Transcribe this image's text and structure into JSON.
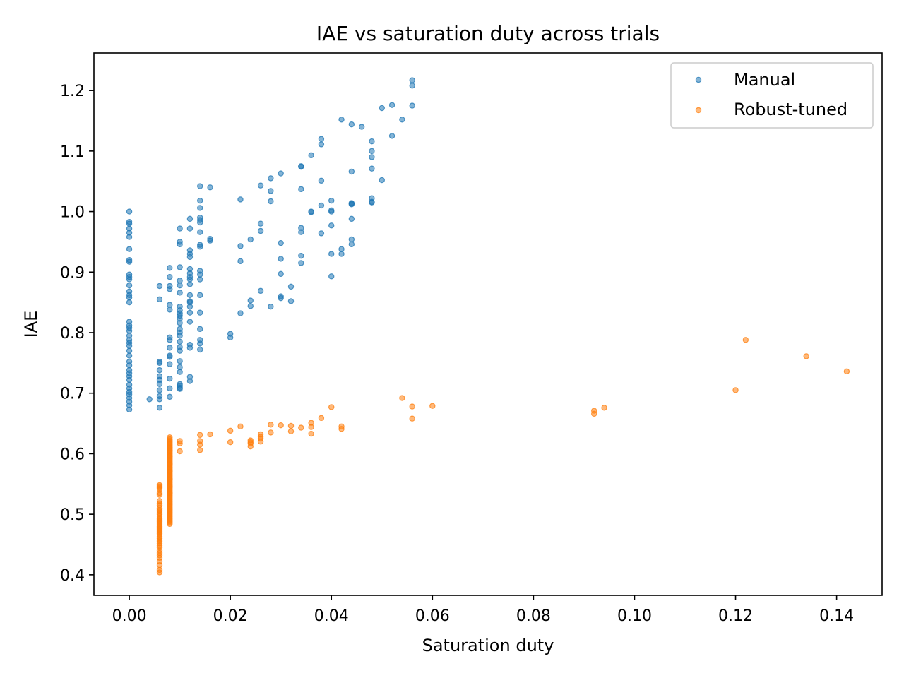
{
  "chart_data": {
    "type": "scatter",
    "title": "IAE vs saturation duty across trials",
    "xlabel": "Saturation duty",
    "ylabel": "IAE",
    "xlim": [
      -0.007,
      0.149
    ],
    "ylim": [
      0.366,
      1.262
    ],
    "xticks": [
      0.0,
      0.02,
      0.04,
      0.06,
      0.08,
      0.1,
      0.12,
      0.14
    ],
    "xtick_labels": [
      "0.00",
      "0.02",
      "0.04",
      "0.06",
      "0.08",
      "0.10",
      "0.12",
      "0.14"
    ],
    "yticks": [
      0.4,
      0.5,
      0.6,
      0.7,
      0.8,
      0.9,
      1.0,
      1.1,
      1.2
    ],
    "ytick_labels": [
      "0.4",
      "0.5",
      "0.6",
      "0.7",
      "0.8",
      "0.9",
      "1.0",
      "1.1",
      "1.2"
    ],
    "grid": false,
    "legend_position": "top-right",
    "series": [
      {
        "name": "Manual",
        "color": "#1f77b4",
        "x": [
          0,
          0,
          0,
          0,
          0,
          0,
          0,
          0,
          0,
          0,
          0,
          0,
          0,
          0,
          0,
          0,
          0,
          0,
          0,
          0,
          0,
          0,
          0,
          0,
          0,
          0,
          0,
          0,
          0,
          0,
          0,
          0,
          0,
          0,
          0,
          0,
          0,
          0,
          0,
          0,
          0,
          0.004,
          0.006,
          0.006,
          0.006,
          0.006,
          0.006,
          0.006,
          0.006,
          0.006,
          0.006,
          0.006,
          0.006,
          0.006,
          0.008,
          0.008,
          0.008,
          0.008,
          0.008,
          0.008,
          0.008,
          0.008,
          0.008,
          0.008,
          0.008,
          0.008,
          0.008,
          0.008,
          0.008,
          0.01,
          0.01,
          0.01,
          0.01,
          0.01,
          0.01,
          0.01,
          0.01,
          0.01,
          0.01,
          0.01,
          0.01,
          0.01,
          0.01,
          0.01,
          0.01,
          0.01,
          0.01,
          0.01,
          0.01,
          0.01,
          0.01,
          0.01,
          0.01,
          0.01,
          0.01,
          0.012,
          0.012,
          0.012,
          0.012,
          0.012,
          0.012,
          0.012,
          0.012,
          0.012,
          0.012,
          0.012,
          0.012,
          0.012,
          0.012,
          0.012,
          0.012,
          0.012,
          0.012,
          0.012,
          0.012,
          0.014,
          0.014,
          0.014,
          0.014,
          0.014,
          0.014,
          0.014,
          0.014,
          0.014,
          0.014,
          0.014,
          0.014,
          0.014,
          0.014,
          0.014,
          0.014,
          0.014,
          0.014,
          0.016,
          0.016,
          0.016,
          0.02,
          0.02,
          0.022,
          0.022,
          0.022,
          0.022,
          0.024,
          0.024,
          0.024,
          0.026,
          0.026,
          0.026,
          0.026,
          0.028,
          0.028,
          0.028,
          0.028,
          0.03,
          0.03,
          0.03,
          0.03,
          0.03,
          0.03,
          0.032,
          0.032,
          0.034,
          0.034,
          0.034,
          0.034,
          0.034,
          0.034,
          0.034,
          0.036,
          0.036,
          0.036,
          0.038,
          0.038,
          0.038,
          0.038,
          0.038,
          0.04,
          0.04,
          0.04,
          0.04,
          0.04,
          0.04,
          0.042,
          0.042,
          0.042,
          0.044,
          0.044,
          0.044,
          0.044,
          0.044,
          0.044,
          0.044,
          0.044,
          0.046,
          0.048,
          0.048,
          0.048,
          0.048,
          0.048,
          0.048,
          0.048,
          0.05,
          0.05,
          0.052,
          0.052,
          0.054,
          0.056,
          0.056,
          0.056
        ],
        "y": [
          1.0,
          0.983,
          0.98,
          0.972,
          0.965,
          0.958,
          0.938,
          0.92,
          0.917,
          0.896,
          0.892,
          0.888,
          0.878,
          0.868,
          0.862,
          0.858,
          0.85,
          0.818,
          0.812,
          0.808,
          0.803,
          0.795,
          0.788,
          0.783,
          0.778,
          0.77,
          0.762,
          0.752,
          0.746,
          0.738,
          0.733,
          0.728,
          0.722,
          0.714,
          0.708,
          0.702,
          0.698,
          0.692,
          0.686,
          0.68,
          0.673,
          0.69,
          0.877,
          0.855,
          0.752,
          0.75,
          0.738,
          0.728,
          0.722,
          0.715,
          0.705,
          0.695,
          0.69,
          0.676,
          0.907,
          0.892,
          0.877,
          0.872,
          0.846,
          0.838,
          0.792,
          0.788,
          0.775,
          0.762,
          0.76,
          0.748,
          0.724,
          0.708,
          0.694,
          0.972,
          0.95,
          0.946,
          0.908,
          0.886,
          0.878,
          0.866,
          0.843,
          0.837,
          0.832,
          0.828,
          0.823,
          0.816,
          0.806,
          0.8,
          0.795,
          0.785,
          0.776,
          0.77,
          0.753,
          0.743,
          0.735,
          0.715,
          0.712,
          0.709,
          0.707,
          0.988,
          0.972,
          0.936,
          0.93,
          0.925,
          0.905,
          0.898,
          0.892,
          0.888,
          0.88,
          0.862,
          0.852,
          0.85,
          0.843,
          0.833,
          0.818,
          0.78,
          0.775,
          0.727,
          0.72,
          1.042,
          1.018,
          1.006,
          0.99,
          0.986,
          0.982,
          0.966,
          0.945,
          0.942,
          0.902,
          0.896,
          0.888,
          0.862,
          0.833,
          0.806,
          0.788,
          0.782,
          0.772,
          1.04,
          0.955,
          0.952,
          0.798,
          0.792,
          1.02,
          0.943,
          0.918,
          0.832,
          0.853,
          0.844,
          0.954,
          1.043,
          0.98,
          0.968,
          0.869,
          1.055,
          1.034,
          1.017,
          0.843,
          1.063,
          0.948,
          0.922,
          0.897,
          0.86,
          0.857,
          0.876,
          0.852,
          1.075,
          1.074,
          1.037,
          0.973,
          0.966,
          0.927,
          0.915,
          1.093,
          1.0,
          0.999,
          1.12,
          1.111,
          1.051,
          1.01,
          0.964,
          1.018,
          1.002,
          1.0,
          0.977,
          0.93,
          0.893,
          1.152,
          0.938,
          0.93,
          1.144,
          1.066,
          1.014,
          1.013,
          1.012,
          0.988,
          0.954,
          0.946,
          1.14,
          1.116,
          1.1,
          1.09,
          1.071,
          1.022,
          1.015,
          1.016,
          1.171,
          1.052,
          1.176,
          1.125,
          1.152,
          1.217,
          1.208,
          1.175
        ]
      },
      {
        "name": "Robust-tuned",
        "color": "#ff7f0e",
        "x": [
          0.006,
          0.006,
          0.006,
          0.006,
          0.006,
          0.006,
          0.006,
          0.006,
          0.006,
          0.006,
          0.006,
          0.006,
          0.006,
          0.006,
          0.006,
          0.006,
          0.006,
          0.006,
          0.006,
          0.006,
          0.006,
          0.006,
          0.006,
          0.006,
          0.006,
          0.006,
          0.006,
          0.006,
          0.006,
          0.006,
          0.006,
          0.006,
          0.006,
          0.006,
          0.006,
          0.006,
          0.006,
          0.006,
          0.006,
          0.006,
          0.006,
          0.006,
          0.006,
          0.006,
          0.006,
          0.008,
          0.008,
          0.008,
          0.008,
          0.008,
          0.008,
          0.008,
          0.008,
          0.008,
          0.008,
          0.008,
          0.008,
          0.008,
          0.008,
          0.008,
          0.008,
          0.008,
          0.008,
          0.008,
          0.008,
          0.008,
          0.008,
          0.008,
          0.008,
          0.008,
          0.008,
          0.008,
          0.008,
          0.008,
          0.008,
          0.008,
          0.008,
          0.008,
          0.008,
          0.008,
          0.008,
          0.008,
          0.008,
          0.008,
          0.008,
          0.008,
          0.008,
          0.008,
          0.008,
          0.008,
          0.008,
          0.008,
          0.008,
          0.008,
          0.008,
          0.008,
          0.008,
          0.008,
          0.008,
          0.008,
          0.008,
          0.008,
          0.008,
          0.008,
          0.008,
          0.008,
          0.008,
          0.008,
          0.008,
          0.008,
          0.008,
          0.008,
          0.008,
          0.008,
          0.008,
          0.008,
          0.008,
          0.008,
          0.008,
          0.008,
          0.008,
          0.008,
          0.008,
          0.008,
          0.008,
          0.01,
          0.01,
          0.01,
          0.014,
          0.014,
          0.014,
          0.014,
          0.016,
          0.02,
          0.02,
          0.022,
          0.024,
          0.024,
          0.024,
          0.024,
          0.026,
          0.026,
          0.026,
          0.026,
          0.028,
          0.028,
          0.03,
          0.032,
          0.032,
          0.034,
          0.036,
          0.036,
          0.036,
          0.038,
          0.04,
          0.042,
          0.042,
          0.054,
          0.056,
          0.056,
          0.06,
          0.092,
          0.092,
          0.094,
          0.12,
          0.122,
          0.134,
          0.142
        ],
        "y": [
          0.548,
          0.546,
          0.544,
          0.542,
          0.535,
          0.532,
          0.522,
          0.518,
          0.515,
          0.51,
          0.507,
          0.505,
          0.502,
          0.5,
          0.497,
          0.494,
          0.492,
          0.49,
          0.488,
          0.486,
          0.484,
          0.482,
          0.48,
          0.478,
          0.476,
          0.474,
          0.472,
          0.47,
          0.468,
          0.466,
          0.463,
          0.46,
          0.457,
          0.455,
          0.452,
          0.448,
          0.445,
          0.44,
          0.436,
          0.432,
          0.428,
          0.422,
          0.416,
          0.408,
          0.404,
          0.627,
          0.624,
          0.622,
          0.62,
          0.618,
          0.616,
          0.614,
          0.612,
          0.61,
          0.608,
          0.606,
          0.604,
          0.602,
          0.6,
          0.598,
          0.596,
          0.594,
          0.592,
          0.59,
          0.588,
          0.586,
          0.584,
          0.582,
          0.58,
          0.578,
          0.576,
          0.574,
          0.572,
          0.57,
          0.568,
          0.566,
          0.564,
          0.562,
          0.56,
          0.558,
          0.556,
          0.554,
          0.552,
          0.55,
          0.548,
          0.546,
          0.544,
          0.542,
          0.54,
          0.538,
          0.536,
          0.534,
          0.532,
          0.53,
          0.528,
          0.526,
          0.524,
          0.522,
          0.52,
          0.518,
          0.516,
          0.514,
          0.512,
          0.51,
          0.508,
          0.506,
          0.504,
          0.502,
          0.5,
          0.498,
          0.496,
          0.494,
          0.492,
          0.49,
          0.488,
          0.486,
          0.484,
          0.61,
          0.605,
          0.596,
          0.583,
          0.571,
          0.558,
          0.546,
          0.535,
          0.621,
          0.617,
          0.604,
          0.631,
          0.621,
          0.615,
          0.606,
          0.632,
          0.638,
          0.619,
          0.645,
          0.622,
          0.619,
          0.617,
          0.612,
          0.632,
          0.628,
          0.625,
          0.62,
          0.648,
          0.635,
          0.647,
          0.646,
          0.637,
          0.643,
          0.651,
          0.644,
          0.633,
          0.659,
          0.677,
          0.645,
          0.641,
          0.692,
          0.678,
          0.658,
          0.679,
          0.671,
          0.666,
          0.676,
          0.705,
          0.788,
          0.761,
          0.736
        ]
      }
    ]
  }
}
